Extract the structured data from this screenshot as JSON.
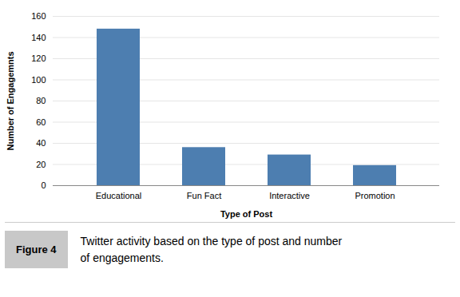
{
  "chart_data": {
    "type": "bar",
    "xlabel": "Type of Post",
    "ylabel": "Number of Engagemnts",
    "categories": [
      "Educational",
      "Fun Fact",
      "Interactive",
      "Promotion"
    ],
    "values": [
      148,
      36,
      29,
      19
    ],
    "color": "#4d7eb0",
    "ylim": [
      0,
      160
    ],
    "yticks": [
      0,
      20,
      40,
      60,
      80,
      100,
      120,
      140,
      160
    ],
    "grid": true,
    "annotations": [
      "Figure 4"
    ],
    "caption": "Twitter activity based on the type of post and number\nof engagements."
  }
}
